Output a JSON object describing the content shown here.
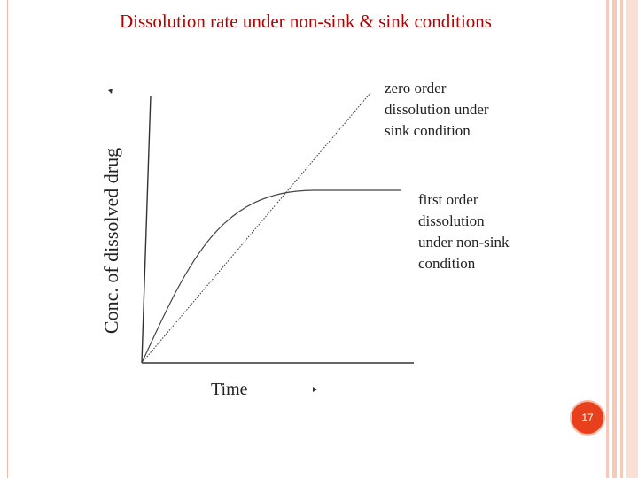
{
  "slide": {
    "title": "Dissolution rate under non-sink & sink conditions",
    "page_number": "17"
  },
  "diagram": {
    "y_axis_label": "Conc. of dissolved drug",
    "x_axis_label": "Time",
    "curves": [
      {
        "label_lines": [
          "zero order",
          "dissolution under",
          "sink condition"
        ],
        "style": "dotted straight line"
      },
      {
        "label_lines": [
          "first order",
          "dissolution",
          "under non-sink",
          "condition"
        ],
        "style": "solid curve, plateau"
      }
    ]
  },
  "colors": {
    "title": "#b30000",
    "page_badge": "#e8401c",
    "accent_border": "#f6c9b8"
  }
}
